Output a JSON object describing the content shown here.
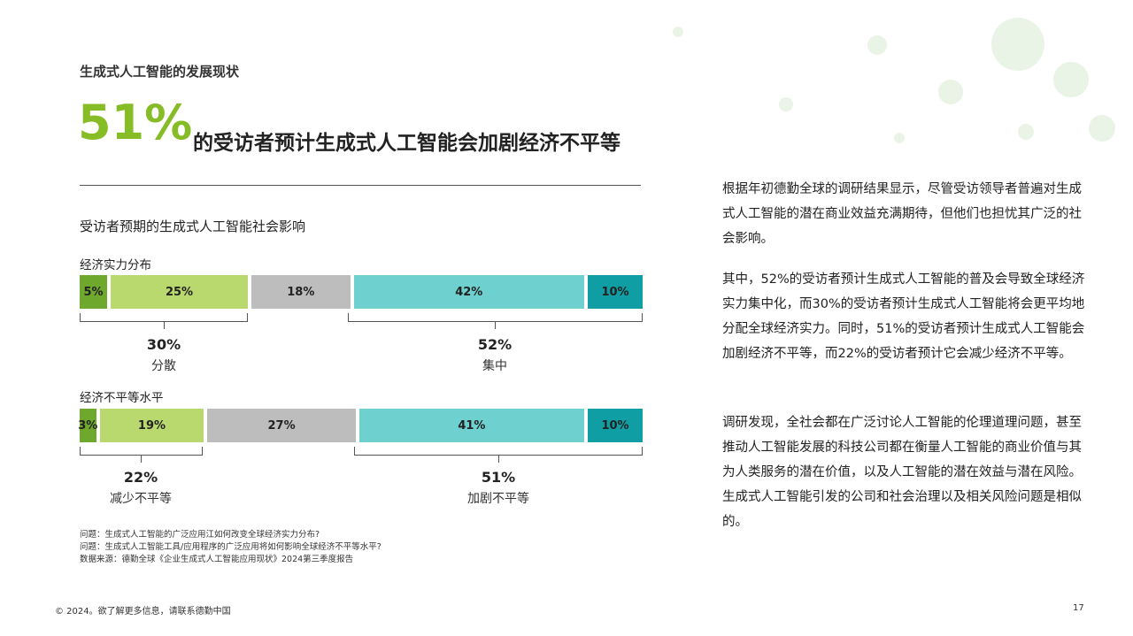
{
  "section_title": "生成式人工智能的发展现状",
  "headline": {
    "percent": "51%",
    "text": "的受访者预计生成式人工智能会加剧经济不平等"
  },
  "chart_title": "受访者预期的生成式人工智能社会影响",
  "chart_data": {
    "type": "bar",
    "stacked": true,
    "orientation": "horizontal",
    "colors": [
      "#6ea82d",
      "#b9d96f",
      "#bdbdbd",
      "#6ed0cf",
      "#0f9ea3"
    ],
    "rows": [
      {
        "label": "经济实力分布",
        "values": [
          5,
          25,
          18,
          42,
          10
        ],
        "value_labels": [
          "5%",
          "25%",
          "18%",
          "42%",
          "10%"
        ],
        "groups": [
          {
            "percent": "30%",
            "label": "分散"
          },
          {
            "percent": "52%",
            "label": "集中"
          }
        ]
      },
      {
        "label": "经济不平等水平",
        "values": [
          3,
          19,
          27,
          41,
          10
        ],
        "value_labels": [
          "3%",
          "19%",
          "27%",
          "41%",
          "10%"
        ],
        "groups": [
          {
            "percent": "22%",
            "label": "减少不平等"
          },
          {
            "percent": "51%",
            "label": "加剧不平等"
          }
        ]
      }
    ]
  },
  "notes": [
    "问题：生成式人工智能的广泛应用江如何改变全球经济实力分布?",
    "问题：生成式人工智能工具/应用程序的广泛应用将如何影响全球经济不平等水平?",
    "数据来源：德勤全球《企业生成式人工智能应用现状》2024第三季度报告"
  ],
  "paragraphs": [
    "根据年初德勤全球的调研结果显示，尽管受访领导者普遍对生成式人工智能的潜在商业效益充满期待，但他们也担忧其广泛的社会影响。",
    "其中，52%的受访者预计生成式人工智能的普及会导致全球经济实力集中化，而30%的受访者预计生成式人工智能将会更平均地分配全球经济实力。同时，51%的受访者预计生成式人工智能会加剧经济不平等，而22%的受访者预计它会减少经济不平等。",
    "调研发现，全社会都在广泛讨论人工智能的伦理道理问题，甚至推动人工智能发展的科技公司都在衡量人工智能的商业价值与其为人类服务的潜在价值，以及人工智能的潜在效益与潜在风险。生成式人工智能引发的公司和社会治理以及相关风险问题是相似的。"
  ],
  "footer": "© 2024。欲了解更多信息，请联系德勤中国",
  "page_number": "17"
}
